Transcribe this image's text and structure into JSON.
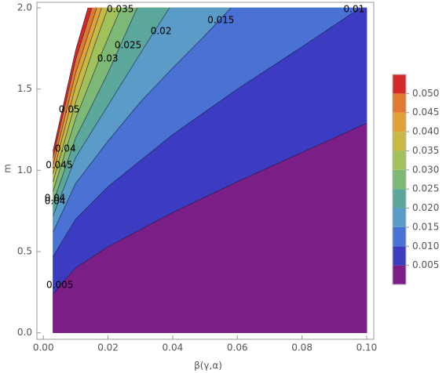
{
  "chart_data": {
    "type": "contour",
    "xlabel": "β(γ,α)",
    "ylabel": "m",
    "xlim": [
      -0.002,
      0.1022
    ],
    "ylim": [
      -0.04,
      2.034
    ],
    "xticks": [
      {
        "value": 0,
        "label": "0.00"
      },
      {
        "value": 0.02,
        "label": "0.02"
      },
      {
        "value": 0.04,
        "label": "0.04"
      },
      {
        "value": 0.06,
        "label": "0.06"
      },
      {
        "value": 0.08,
        "label": "0.08"
      },
      {
        "value": 0.1,
        "label": "0.10"
      }
    ],
    "yticks": [
      {
        "value": 0,
        "label": "0.0"
      },
      {
        "value": 0.5,
        "label": "0.5"
      },
      {
        "value": 1,
        "label": "1.0"
      },
      {
        "value": 1.5,
        "label": "1.5"
      },
      {
        "value": 2,
        "label": "2.0"
      }
    ],
    "domain": {
      "x": [
        0.003,
        0.1
      ],
      "y": [
        0,
        2
      ]
    },
    "colors": [
      "#7b1e87",
      "#3c3cc2",
      "#4a72d4",
      "#5a9bc8",
      "#5ba79c",
      "#7db877",
      "#a2c15b",
      "#c7b944",
      "#e0a238",
      "#e07a30",
      "#d4282a"
    ],
    "contours": [
      {
        "level": 0.005,
        "x": [
          0.003,
          0.01,
          0.02,
          0.04,
          0.06,
          0.08,
          0.1
        ],
        "y": [
          0.24,
          0.4,
          0.53,
          0.74,
          0.93,
          1.11,
          1.29
        ]
      },
      {
        "level": 0.01,
        "x": [
          0.003,
          0.01,
          0.02,
          0.04,
          0.06,
          0.08,
          0.098
        ],
        "y": [
          0.47,
          0.7,
          0.9,
          1.22,
          1.5,
          1.76,
          2
        ]
      },
      {
        "level": 0.015,
        "x": [
          0.003,
          0.01,
          0.02,
          0.03,
          0.04,
          0.05,
          0.058
        ],
        "y": [
          0.62,
          0.92,
          1.18,
          1.42,
          1.63,
          1.83,
          2
        ]
      },
      {
        "level": 0.02,
        "x": [
          0.003,
          0.01,
          0.02,
          0.03,
          0.039
        ],
        "y": [
          0.72,
          1.08,
          1.4,
          1.72,
          2
        ]
      },
      {
        "level": 0.025,
        "x": [
          0.003,
          0.01,
          0.02,
          0.029
        ],
        "y": [
          0.8,
          1.2,
          1.6,
          2
        ]
      },
      {
        "level": 0.03,
        "x": [
          0.003,
          0.01,
          0.018,
          0.024
        ],
        "y": [
          0.87,
          1.32,
          1.72,
          2
        ]
      },
      {
        "level": 0.035,
        "x": [
          0.003,
          0.01,
          0.016,
          0.02
        ],
        "y": [
          0.93,
          1.42,
          1.78,
          2
        ]
      },
      {
        "level": 0.04,
        "x": [
          0.003,
          0.01,
          0.018
        ],
        "y": [
          0.98,
          1.52,
          2
        ]
      },
      {
        "level": 0.045,
        "x": [
          0.003,
          0.01,
          0.0165
        ],
        "y": [
          1.03,
          1.6,
          2
        ]
      },
      {
        "level": 0.05,
        "x": [
          0.003,
          0.01,
          0.015
        ],
        "y": [
          1.08,
          1.68,
          2
        ]
      },
      {
        "level": 0.055,
        "x": [
          0.003,
          0.01,
          0.0138
        ],
        "y": [
          1.12,
          1.74,
          2
        ]
      }
    ],
    "contour_labels": [
      {
        "label": "0.035",
        "x": 0.0238,
        "y": 1.99
      },
      {
        "label": "0.02",
        "x": 0.0364,
        "y": 1.855
      },
      {
        "label": "0.015",
        "x": 0.0549,
        "y": 1.923
      },
      {
        "label": "0.01",
        "x": 0.0961,
        "y": 1.99
      },
      {
        "label": "0.025",
        "x": 0.0262,
        "y": 1.769
      },
      {
        "label": "0.03",
        "x": 0.0199,
        "y": 1.687
      },
      {
        "label": "0.05",
        "x": 0.008,
        "y": 1.373
      },
      {
        "label": "0.04",
        "x": 0.0068,
        "y": 1.133
      },
      {
        "label": "0.045",
        "x": 0.0049,
        "y": 1.031
      },
      {
        "label": "0.04",
        "x": 0.0036,
        "y": 0.829
      },
      {
        "label": "0.04",
        "x": 0.0036,
        "y": 0.81
      },
      {
        "label": "0.005",
        "x": 0.0051,
        "y": 0.294
      }
    ],
    "colorbar_lim": [
      0,
      0.055
    ],
    "colorbar_ticks": [
      0.005,
      {
        "value": 0.01,
        "label": "0.010"
      },
      0.015,
      {
        "value": 0.02,
        "label": "0.020"
      },
      0.025,
      {
        "value": 0.03,
        "label": "0.030"
      },
      0.035,
      {
        "value": 0.04,
        "label": "0.040"
      },
      0.045,
      {
        "value": 0.05,
        "label": "0.050"
      }
    ]
  }
}
